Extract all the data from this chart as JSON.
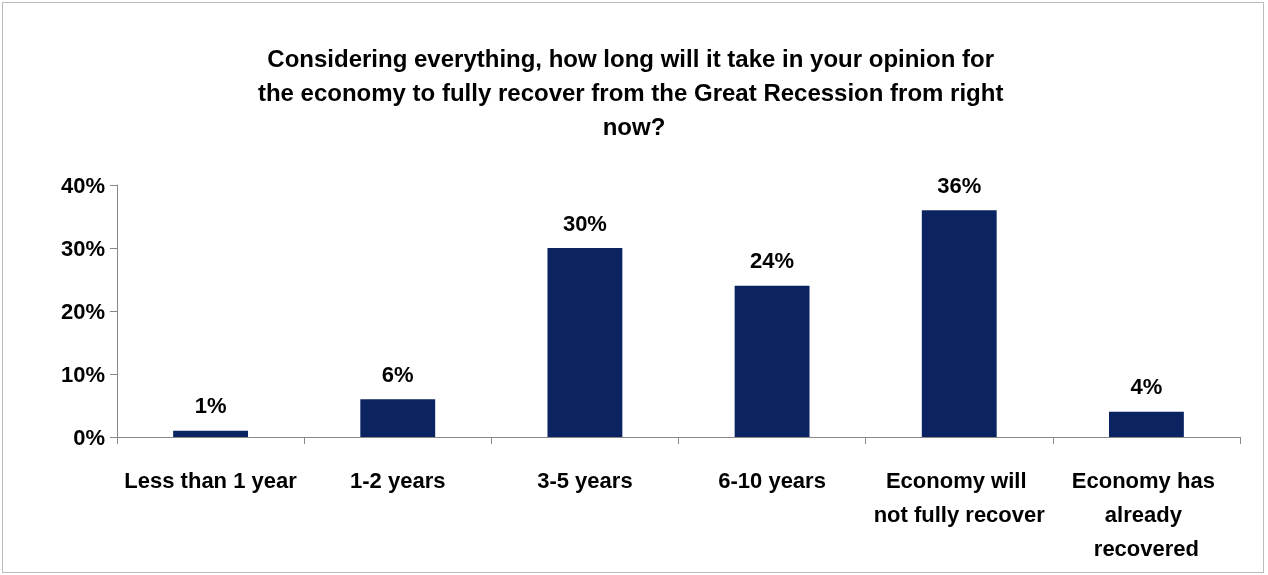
{
  "chart_data": {
    "type": "bar",
    "title": "Considering everything, how long will it take in your opinion for the economy to fully recover from the Great Recession from right now?",
    "categories": [
      "Less than 1 year",
      "1-2 years",
      "3-5 years",
      "6-10 years",
      "Economy will not fully recover",
      "Economy has already recovered"
    ],
    "values": [
      1,
      6,
      30,
      24,
      36,
      4
    ],
    "value_labels": [
      "1%",
      "6%",
      "30%",
      "24%",
      "36%",
      "4%"
    ],
    "color": "#0b2461",
    "ylim": [
      0,
      40
    ],
    "yticks": [
      {
        "value": 0,
        "label": "0%"
      },
      {
        "value": 10,
        "label": "10%"
      },
      {
        "value": 20,
        "label": "20%"
      },
      {
        "value": 30,
        "label": "30%"
      },
      {
        "value": 40,
        "label": "40%"
      }
    ],
    "grid": false
  }
}
